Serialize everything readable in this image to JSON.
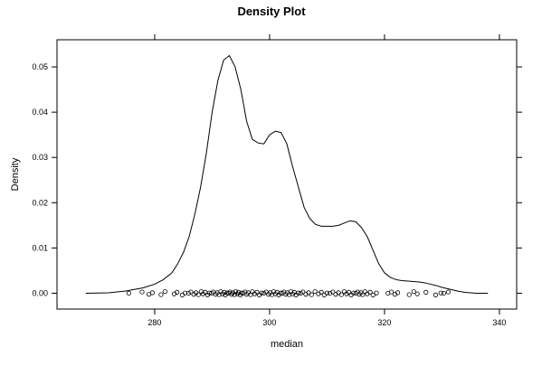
{
  "chart_data": {
    "type": "line",
    "title": "Density Plot",
    "xlabel": "median",
    "ylabel": "Density",
    "xlim": [
      263,
      343
    ],
    "ylim": [
      -0.0035,
      0.056
    ],
    "x_ticks": [
      280,
      300,
      320,
      340
    ],
    "y_ticks": [
      0.0,
      0.01,
      0.02,
      0.03,
      0.04,
      0.05
    ],
    "x_tick_labels": [
      "280",
      "300",
      "320",
      "340"
    ],
    "y_tick_labels": [
      "0.00",
      "0.01",
      "0.02",
      "0.03",
      "0.04",
      "0.05"
    ],
    "grid": false,
    "series": [
      {
        "x": [
          268,
          272,
          275,
          278,
          280,
          281.5,
          283,
          284,
          285,
          286,
          287,
          288,
          289,
          290,
          291,
          292,
          293,
          294,
          295,
          296,
          297,
          298,
          299,
          300,
          301,
          302,
          303,
          304,
          305,
          306,
          307,
          308,
          309,
          310,
          311,
          312,
          313,
          314,
          315,
          316,
          317,
          318,
          319,
          320,
          321,
          322,
          323,
          324,
          325,
          326,
          327,
          328,
          329,
          330,
          331,
          332,
          333,
          334,
          335,
          336,
          338
        ],
        "y": [
          0.0,
          0.0001,
          0.0005,
          0.0012,
          0.002,
          0.003,
          0.0045,
          0.0065,
          0.009,
          0.0125,
          0.0175,
          0.0235,
          0.031,
          0.04,
          0.047,
          0.0515,
          0.0525,
          0.05,
          0.045,
          0.038,
          0.034,
          0.0332,
          0.033,
          0.035,
          0.0358,
          0.0355,
          0.033,
          0.028,
          0.0235,
          0.019,
          0.0165,
          0.0152,
          0.0148,
          0.0148,
          0.0148,
          0.015,
          0.0155,
          0.016,
          0.0158,
          0.0145,
          0.0125,
          0.0095,
          0.0065,
          0.0045,
          0.0035,
          0.003,
          0.0028,
          0.0027,
          0.0026,
          0.0025,
          0.0023,
          0.002,
          0.0017,
          0.0013,
          0.001,
          0.0007,
          0.0004,
          0.0002,
          0.0001,
          0.0,
          0.0
        ]
      }
    ],
    "rug_points": [
      275.5,
      277.8,
      279.0,
      279.6,
      281.1,
      281.8,
      283.4,
      283.9,
      284.8,
      285.3,
      285.9,
      286.3,
      286.8,
      287.2,
      287.6,
      288.1,
      288.4,
      288.8,
      289.2,
      289.5,
      289.9,
      290.2,
      290.6,
      290.9,
      291.2,
      291.5,
      291.8,
      292.1,
      292.3,
      292.6,
      292.9,
      293.1,
      293.4,
      293.6,
      293.9,
      294.1,
      294.4,
      294.6,
      294.9,
      295.1,
      295.4,
      295.7,
      296.0,
      296.3,
      296.7,
      297.0,
      297.4,
      297.8,
      298.2,
      298.6,
      299.0,
      299.4,
      299.8,
      300.1,
      300.4,
      300.7,
      301.0,
      301.3,
      301.6,
      301.9,
      302.2,
      302.5,
      302.8,
      303.1,
      303.4,
      303.7,
      304.0,
      304.3,
      304.6,
      305.0,
      305.4,
      305.8,
      306.3,
      306.8,
      307.3,
      307.9,
      308.5,
      309.0,
      309.5,
      310.0,
      310.5,
      311.0,
      311.5,
      312.0,
      312.5,
      313.0,
      313.4,
      313.8,
      314.2,
      314.6,
      315.0,
      315.3,
      315.6,
      315.9,
      316.2,
      316.6,
      317.0,
      317.5,
      318.0,
      318.6,
      320.6,
      321.2,
      321.8,
      322.3,
      324.3,
      325.1,
      325.7,
      327.2,
      328.9,
      329.8,
      330.3,
      331.1
    ]
  }
}
